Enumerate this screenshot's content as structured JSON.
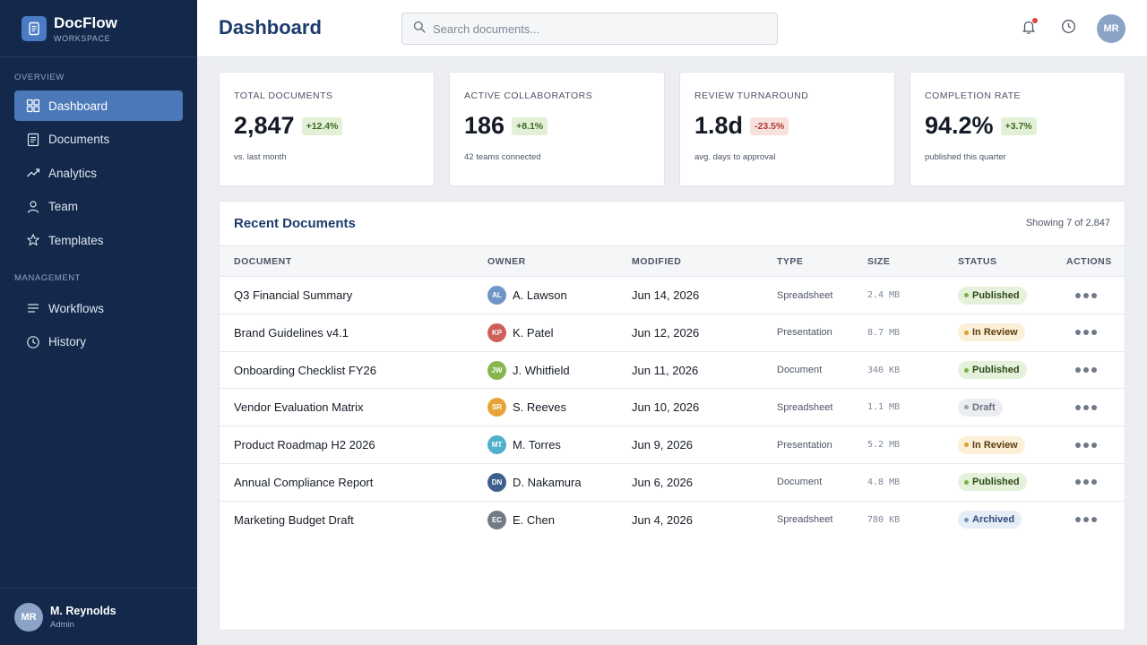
{
  "brand": {
    "name": "DocFlow",
    "subtitle": "WORKSPACE",
    "logo_icon": "document-icon"
  },
  "sidebar": {
    "sections": [
      {
        "label": "OVERVIEW",
        "items": [
          {
            "label": "Dashboard",
            "icon": "grid-icon",
            "active": true
          },
          {
            "label": "Documents",
            "icon": "document-icon",
            "active": false
          },
          {
            "label": "Analytics",
            "icon": "trend-icon",
            "active": false
          },
          {
            "label": "Team",
            "icon": "user-icon",
            "active": false
          },
          {
            "label": "Templates",
            "icon": "star-icon",
            "active": false
          }
        ]
      },
      {
        "label": "MANAGEMENT",
        "items": [
          {
            "label": "Workflows",
            "icon": "list-icon",
            "active": false
          },
          {
            "label": "History",
            "icon": "clock-icon",
            "active": false
          }
        ]
      }
    ],
    "user": {
      "initials": "MR",
      "name": "M. Reynolds",
      "role": "Admin"
    }
  },
  "header": {
    "title": "Dashboard",
    "search_placeholder": "Search documents...",
    "avatar_initials": "MR",
    "notification_icon": "bell-icon",
    "history_icon": "clock-icon"
  },
  "stats": [
    {
      "label": "TOTAL DOCUMENTS",
      "value": "2,847",
      "delta": "+12.4%",
      "trend": "up",
      "note": "vs. last month"
    },
    {
      "label": "ACTIVE COLLABORATORS",
      "value": "186",
      "delta": "+8.1%",
      "trend": "up",
      "note": "42 teams connected"
    },
    {
      "label": "REVIEW TURNAROUND",
      "value": "1.8d",
      "delta": "-23.5%",
      "trend": "down",
      "note": "avg. days to approval"
    },
    {
      "label": "COMPLETION RATE",
      "value": "94.2%",
      "delta": "+3.7%",
      "trend": "up",
      "note": "published this quarter"
    }
  ],
  "recent": {
    "title": "Recent Documents",
    "count_text": "Showing 7 of 2,847",
    "columns": [
      "DOCUMENT",
      "OWNER",
      "MODIFIED",
      "TYPE",
      "SIZE",
      "STATUS",
      "ACTIONS"
    ],
    "rows": [
      {
        "doc": "Q3 Financial Summary",
        "initials": "AL",
        "owner": "A. Lawson",
        "owner_color": "#6f95c7",
        "modified": "Jun 14, 2026",
        "type": "Spreadsheet",
        "size": "2.4 MB",
        "status": "Published"
      },
      {
        "doc": "Brand Guidelines v4.1",
        "initials": "KP",
        "owner": "K. Patel",
        "owner_color": "#cf5f59",
        "modified": "Jun 12, 2026",
        "type": "Presentation",
        "size": "8.7 MB",
        "status": "In Review"
      },
      {
        "doc": "Onboarding Checklist FY26",
        "initials": "JW",
        "owner": "J. Whitfield",
        "owner_color": "#86b74c",
        "modified": "Jun 11, 2026",
        "type": "Document",
        "size": "340 KB",
        "status": "Published"
      },
      {
        "doc": "Vendor Evaluation Matrix",
        "initials": "SR",
        "owner": "S. Reeves",
        "owner_color": "#e6a437",
        "modified": "Jun 10, 2026",
        "type": "Spreadsheet",
        "size": "1.1 MB",
        "status": "Draft"
      },
      {
        "doc": "Product Roadmap H2 2026",
        "initials": "MT",
        "owner": "M. Torres",
        "owner_color": "#4fb1c9",
        "modified": "Jun 9, 2026",
        "type": "Presentation",
        "size": "5.2 MB",
        "status": "In Review"
      },
      {
        "doc": "Annual Compliance Report",
        "initials": "DN",
        "owner": "D. Nakamura",
        "owner_color": "#3e5f8c",
        "modified": "Jun 6, 2026",
        "type": "Document",
        "size": "4.8 MB",
        "status": "Published"
      },
      {
        "doc": "Marketing Budget Draft",
        "initials": "EC",
        "owner": "E. Chen",
        "owner_color": "#727a86",
        "modified": "Jun 4, 2026",
        "type": "Spreadsheet",
        "size": "780 KB",
        "status": "Archived"
      }
    ]
  },
  "status_colors": {
    "Published": {
      "bg": "#e6f1dc",
      "fg": "#2f4a1a",
      "dot": "#7bb04a"
    },
    "In Review": {
      "bg": "#fcefd8",
      "fg": "#5a3d0f",
      "dot": "#e19a2c"
    },
    "Draft": {
      "bg": "#ebedf0",
      "fg": "#6a7280",
      "dot": "#9aa1ad"
    },
    "Archived": {
      "bg": "#e6edf7",
      "fg": "#2c4a78",
      "dot": "#6f95c7"
    }
  },
  "colors": {
    "sidebar_bg": "#13284a",
    "accent": "#4a78b8",
    "title": "#1c3b6b",
    "notification_dot": "#e0473c"
  }
}
